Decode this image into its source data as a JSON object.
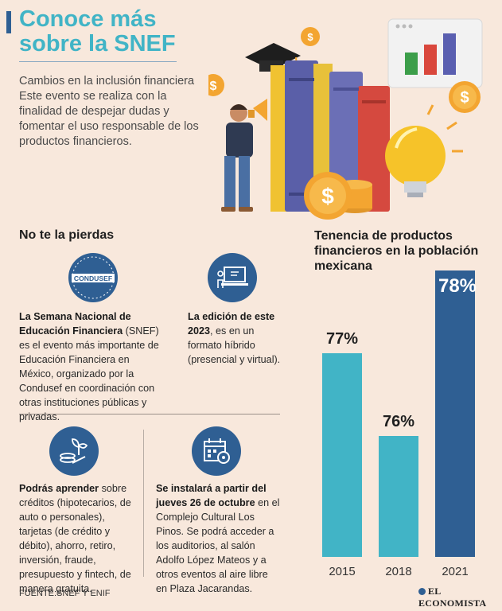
{
  "header": {
    "title_line1": "Conoce más",
    "title_line2": "sobre la SNEF",
    "intro": "Cambios en la inclusión financiera Este evento se realiza con la finalidad de despejar dudas y fomentar el uso responsable de los productos financieros."
  },
  "left": {
    "heading": "No te la pierdas",
    "condusef_logo_text": "CONDUSEF",
    "block1_bold": "La Semana Nacional de Educación Financiera",
    "block1_rest": " (SNEF) es el evento más importante de Educación Financiera en México, organizado por la Condusef en coordinación con otras instituciones públicas y privadas.",
    "block2_pre": "La edición de este ",
    "block2_bold": "2023",
    "block2_rest": ", es en un formato híbrido (presencial y virtual).",
    "block3_bold": "Podrás aprender",
    "block3_rest": " sobre créditos (hipotecarios, de auto o personales), tarjetas (de crédito y débito), ahorro, retiro, inversión, fraude, presupuesto y fintech, de manera gratuita.",
    "block4_bold": "Se instalará a partir del jueves 26 de octubre",
    "block4_rest": " en el Complejo Cultural Los Pinos. Se podrá acceder a los auditorios, al salón Adolfo López Mateos y a otros eventos al aire libre en Plaza Jacarandas."
  },
  "footer": {
    "source": "FUENTE:SNEF Y ENIF",
    "brand": "EL ECONOMISTA"
  },
  "colors": {
    "title": "#41b4c6",
    "icon_bg": "#2f5f93",
    "bar_teal": "#41b4c6",
    "bar_navy": "#2f5f93",
    "background": "#f8e8dc"
  },
  "chart_data": {
    "type": "bar",
    "title": "Tenencia de productos financieros en la población mexicana",
    "categories": [
      "2015",
      "2018",
      "2021"
    ],
    "values": [
      77,
      76,
      78
    ],
    "value_labels": [
      "77%",
      "76%",
      "78%"
    ],
    "bar_colors": [
      "#41b4c6",
      "#41b4c6",
      "#2f5f93"
    ],
    "xlabel": "",
    "ylabel": "",
    "grid": false,
    "legend": "none"
  }
}
